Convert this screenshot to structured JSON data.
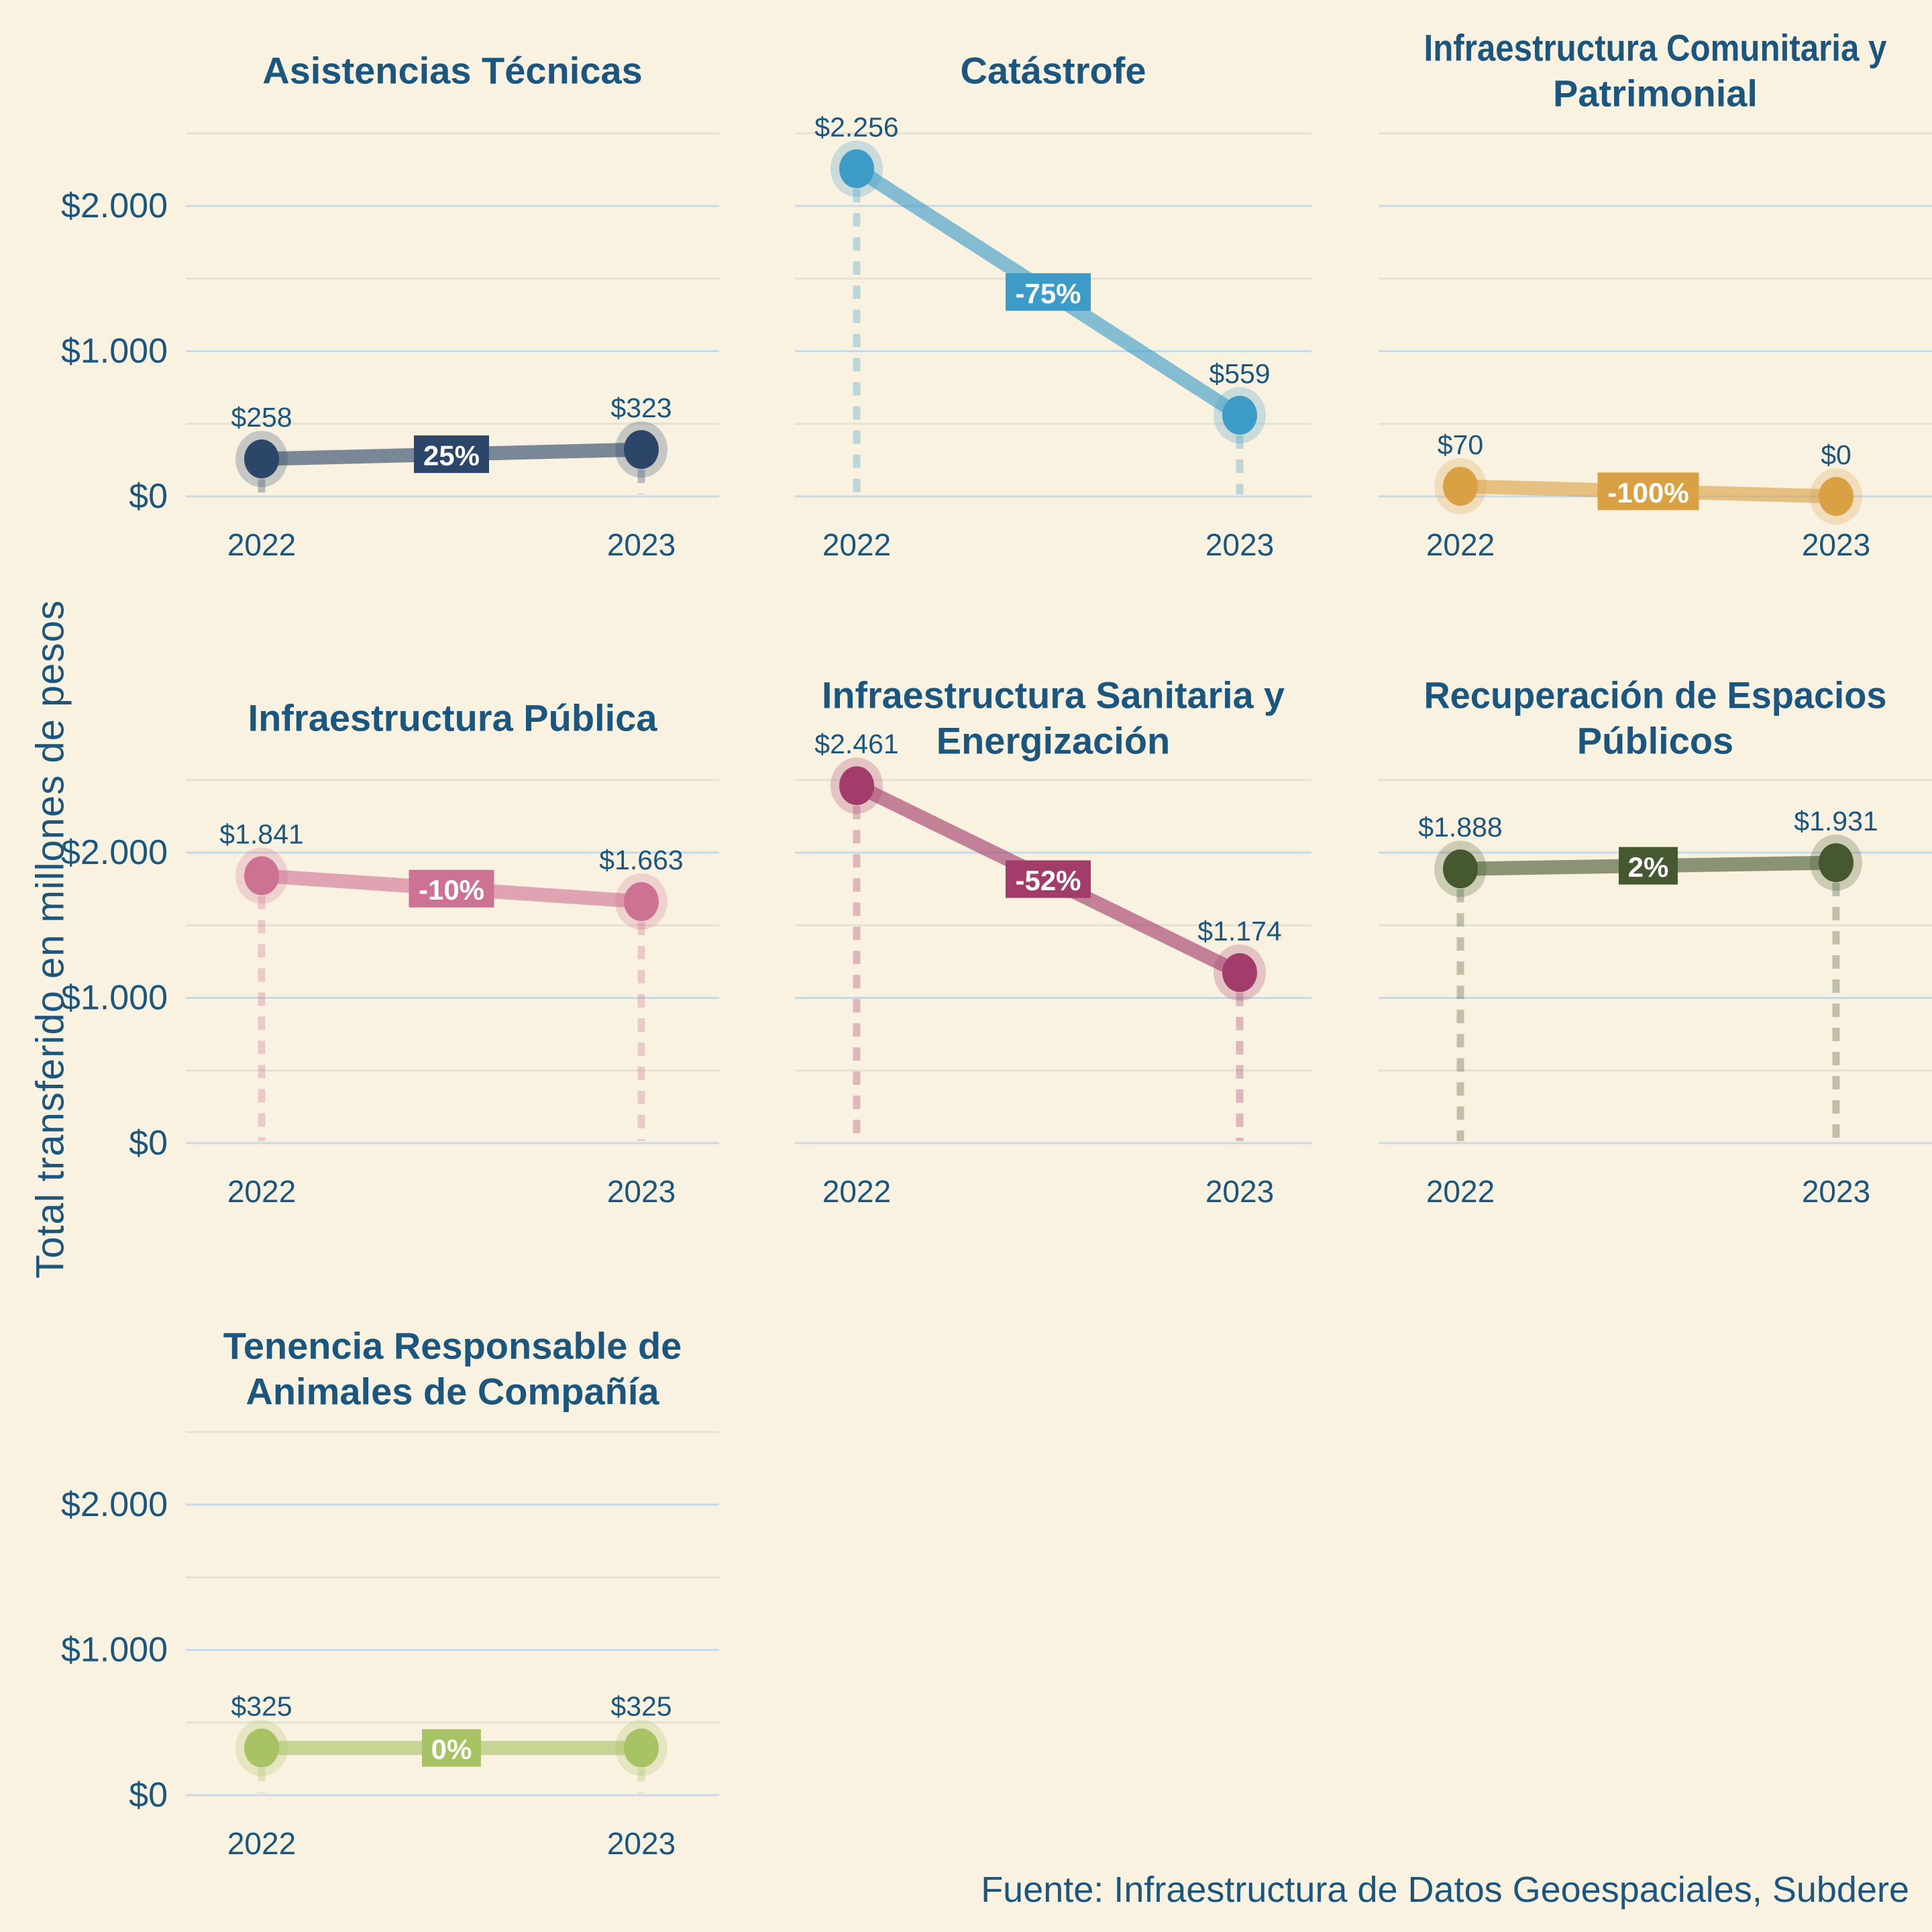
{
  "page": {
    "background": "#FAF2E1",
    "text_color": "#1B567E",
    "y_axis_title": "Total transferido en millones de pesos",
    "source_note": "Fuente: Infraestructura de Datos Geoespaciales, Subdere"
  },
  "chart_data": {
    "type": "line",
    "subtype": "slope-chart-small-multiples",
    "layout_hint": "3-column grid of 7 panels, shared y scale, gridlines every 500, y tick labels only on left column, no legend",
    "x_labels": [
      "2022",
      "2023"
    ],
    "ylabel": "Total transferido en millones de pesos",
    "ylim": [
      0,
      2500
    ],
    "grid_step": 500,
    "grid_major_color": "#C7DAE7",
    "grid_minor_color": "#E4E2D4",
    "y_ticks": [
      {
        "value": 0,
        "label": "$0"
      },
      {
        "value": 1000,
        "label": "$1.000"
      },
      {
        "value": 2000,
        "label": "$2.000"
      }
    ],
    "panels": [
      {
        "title_lines": [
          "Asistencias Técnicas"
        ],
        "values": [
          258,
          323
        ],
        "value_labels": [
          "$258",
          "$323"
        ],
        "change_label": "25%",
        "color": "#2B4669",
        "row": 0,
        "col": 0
      },
      {
        "title_lines": [
          "Catástrofe"
        ],
        "values": [
          2256,
          559
        ],
        "value_labels": [
          "$2.256",
          "$559"
        ],
        "change_label": "-75%",
        "color": "#3C9BC7",
        "row": 0,
        "col": 1
      },
      {
        "title_lines": [
          "Infraestructura Comunitaria y",
          "Patrimonial"
        ],
        "values": [
          70,
          0
        ],
        "value_labels": [
          "$70",
          "$0"
        ],
        "change_label": "-100%",
        "color": "#D9A143",
        "row": 0,
        "col": 2
      },
      {
        "title_lines": [
          "Infraestructura Pública"
        ],
        "values": [
          1841,
          1663
        ],
        "value_labels": [
          "$1.841",
          "$1.663"
        ],
        "change_label": "-10%",
        "color": "#CE7294",
        "row": 1,
        "col": 0
      },
      {
        "title_lines": [
          "Infraestructura Sanitaria y",
          "Energización"
        ],
        "values": [
          2461,
          1174
        ],
        "value_labels": [
          "$2.461",
          "$1.174"
        ],
        "change_label": "-52%",
        "color": "#A23C6A",
        "row": 1,
        "col": 1
      },
      {
        "title_lines": [
          "Recuperación de Espacios",
          "Públicos"
        ],
        "values": [
          1888,
          1931
        ],
        "value_labels": [
          "$1.888",
          "$1.931"
        ],
        "change_label": "2%",
        "color": "#45582F",
        "row": 1,
        "col": 2
      },
      {
        "title_lines": [
          "Tenencia Responsable de",
          "Animales de Compañía"
        ],
        "values": [
          325,
          325
        ],
        "value_labels": [
          "$325",
          "$325"
        ],
        "change_label": "0%",
        "color": "#A7C364",
        "row": 2,
        "col": 0
      }
    ]
  }
}
